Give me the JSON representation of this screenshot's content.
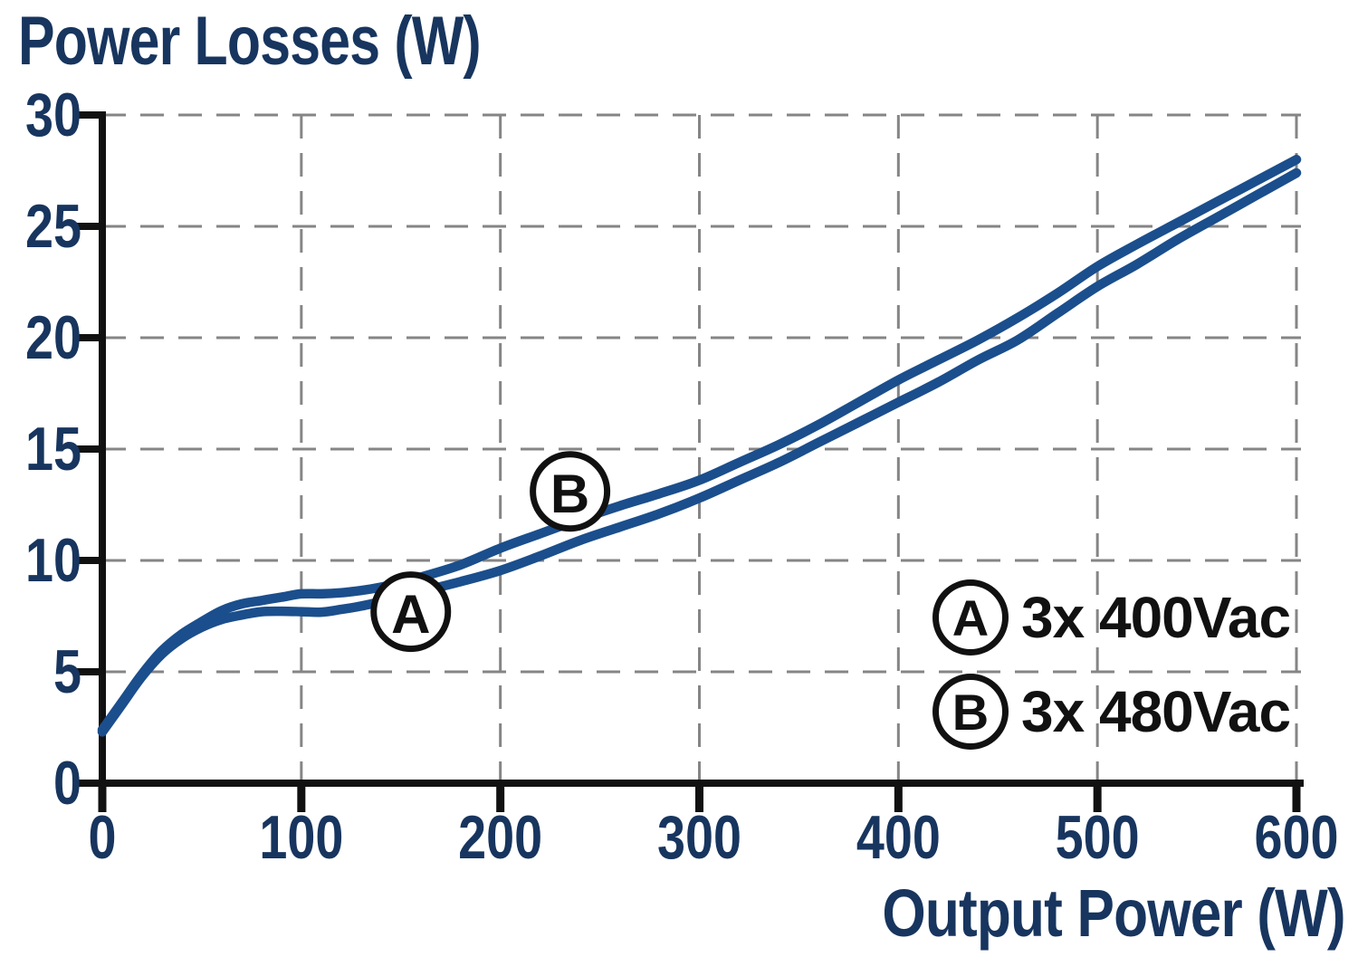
{
  "page": {
    "background": "#ffffff"
  },
  "chart_data": {
    "type": "line",
    "title": "Power Losses (W)",
    "xlabel": "Output Power (W)",
    "xlim": [
      0,
      600
    ],
    "ylim": [
      0,
      30
    ],
    "x_ticks": [
      0,
      100,
      200,
      300,
      400,
      500,
      600
    ],
    "y_ticks": [
      0,
      5,
      10,
      15,
      20,
      25,
      30
    ],
    "grid": "dashed",
    "legend_position": "inside-bottom-right",
    "x": [
      0,
      10,
      20,
      30,
      40,
      50,
      60,
      70,
      80,
      90,
      100,
      110,
      120,
      130,
      140,
      150,
      160,
      180,
      200,
      220,
      240,
      260,
      280,
      300,
      320,
      340,
      360,
      380,
      400,
      420,
      440,
      460,
      480,
      500,
      520,
      540,
      560,
      580,
      600
    ],
    "series": [
      {
        "name": "A",
        "label": "3x 400Vac",
        "values": [
          2.3,
          3.55,
          4.8,
          5.8,
          6.5,
          7.0,
          7.35,
          7.55,
          7.7,
          7.72,
          7.7,
          7.68,
          7.8,
          7.95,
          8.15,
          8.35,
          8.6,
          9.05,
          9.55,
          10.2,
          10.9,
          11.5,
          12.1,
          12.8,
          13.6,
          14.4,
          15.3,
          16.2,
          17.1,
          18.0,
          19.0,
          19.9,
          21.1,
          22.3,
          23.3,
          24.4,
          25.4,
          26.4,
          27.4
        ]
      },
      {
        "name": "B",
        "label": "3x 480Vac",
        "values": [
          2.4,
          3.65,
          4.9,
          5.95,
          6.7,
          7.25,
          7.75,
          8.05,
          8.2,
          8.35,
          8.5,
          8.5,
          8.55,
          8.65,
          8.8,
          9.0,
          9.25,
          9.8,
          10.55,
          11.2,
          11.85,
          12.45,
          13.0,
          13.6,
          14.4,
          15.2,
          16.1,
          17.1,
          18.1,
          19.0,
          19.9,
          20.9,
          22.0,
          23.2,
          24.2,
          25.15,
          26.1,
          27.05,
          28.0
        ]
      }
    ],
    "annotations": [
      {
        "letter": "A",
        "x": 155,
        "y": 7.7
      },
      {
        "letter": "B",
        "x": 235,
        "y": 13.1
      }
    ],
    "colors": {
      "curve": "#1b4e8c",
      "axis_text": "#17355e",
      "axis_line": "#111111",
      "grid_line": "#858585",
      "annotation": "#111111",
      "background": "#ffffff"
    }
  }
}
